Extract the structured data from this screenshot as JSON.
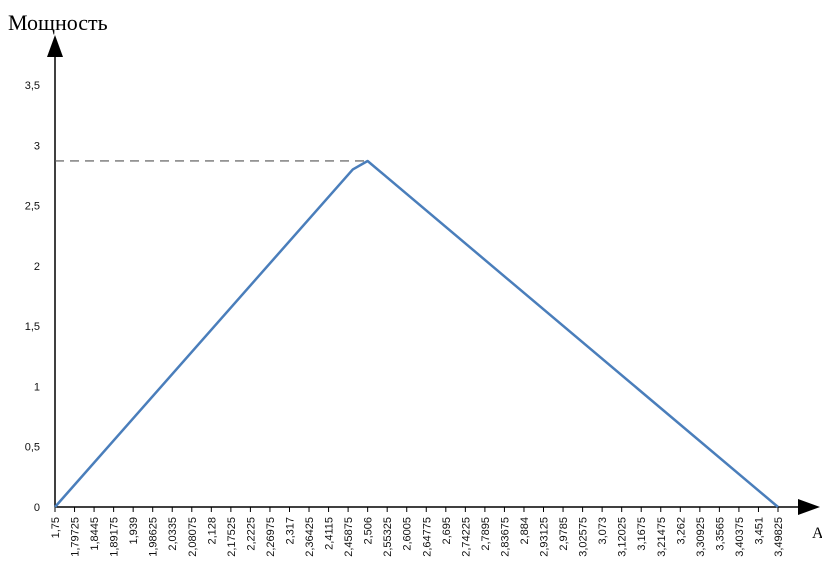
{
  "chart_data": {
    "type": "line",
    "title": "",
    "ylabel": "Мощность",
    "xlabel": "A",
    "ylim": [
      0,
      3.5
    ],
    "yticks": [
      "0",
      "0,5",
      "1",
      "1,5",
      "2",
      "2,5",
      "3",
      "3,5"
    ],
    "categories": [
      "1,75",
      "1,79725",
      "1,8445",
      "1,89175",
      "1,939",
      "1,98625",
      "2,0335",
      "2,08075",
      "2,128",
      "2,17525",
      "2,2225",
      "2,26975",
      "2,317",
      "2,36425",
      "2,4115",
      "2,45875",
      "2,506",
      "2,55325",
      "2,6005",
      "2,64775",
      "2,695",
      "2,74225",
      "2,7895",
      "2,83675",
      "2,884",
      "2,93125",
      "2,9785",
      "3,02575",
      "3,073",
      "3,12025",
      "3,1675",
      "3,21475",
      "3,262",
      "3,30925",
      "3,3565",
      "3,40375",
      "3,451",
      "3,49825"
    ],
    "series": [
      {
        "color": "#4a7ebb",
        "points": [
          {
            "x": 1.75,
            "y": 0
          },
          {
            "x": 2.47,
            "y": 2.8
          },
          {
            "x": 2.506,
            "y": 2.87
          },
          {
            "x": 3.49825,
            "y": 0
          }
        ]
      }
    ],
    "reference_line": {
      "y": 2.87,
      "style": "dashed",
      "color": "#555555"
    },
    "grid": false,
    "legend": "none"
  }
}
